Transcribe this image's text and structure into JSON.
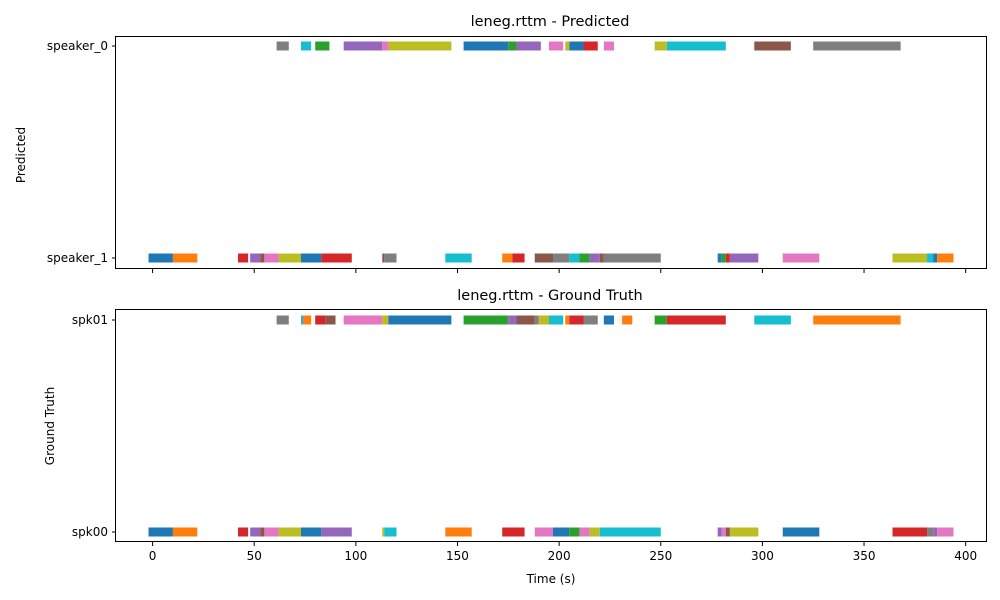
{
  "chart_data": [
    {
      "type": "broken_barh",
      "title": "leneg.rttm - Predicted",
      "ylabel": "Predicted",
      "xlabel": "",
      "xlim": [
        -18,
        410
      ],
      "categories": [
        "speaker_0",
        "speaker_1"
      ],
      "x_ticks": [],
      "segments": [
        {
          "row": "speaker_0",
          "start": 61,
          "end": 67,
          "color": "#7f7f7f"
        },
        {
          "row": "speaker_0",
          "start": 73,
          "end": 78,
          "color": "#17becf"
        },
        {
          "row": "speaker_0",
          "start": 80,
          "end": 87,
          "color": "#2ca02c"
        },
        {
          "row": "speaker_0",
          "start": 94,
          "end": 113,
          "color": "#9467bd"
        },
        {
          "row": "speaker_0",
          "start": 113,
          "end": 116,
          "color": "#e377c2"
        },
        {
          "row": "speaker_0",
          "start": 116,
          "end": 147,
          "color": "#bcbd22"
        },
        {
          "row": "speaker_0",
          "start": 153,
          "end": 175,
          "color": "#1f77b4"
        },
        {
          "row": "speaker_0",
          "start": 175,
          "end": 179,
          "color": "#2ca02c"
        },
        {
          "row": "speaker_0",
          "start": 179,
          "end": 191,
          "color": "#9467bd"
        },
        {
          "row": "speaker_0",
          "start": 195,
          "end": 202,
          "color": "#e377c2"
        },
        {
          "row": "speaker_0",
          "start": 203,
          "end": 205,
          "color": "#bcbd22"
        },
        {
          "row": "speaker_0",
          "start": 205,
          "end": 212,
          "color": "#1f77b4"
        },
        {
          "row": "speaker_0",
          "start": 212,
          "end": 219,
          "color": "#d62728"
        },
        {
          "row": "speaker_0",
          "start": 222,
          "end": 227,
          "color": "#e377c2"
        },
        {
          "row": "speaker_0",
          "start": 247,
          "end": 253,
          "color": "#bcbd22"
        },
        {
          "row": "speaker_0",
          "start": 253,
          "end": 282,
          "color": "#17becf"
        },
        {
          "row": "speaker_0",
          "start": 296,
          "end": 314,
          "color": "#8c564b"
        },
        {
          "row": "speaker_0",
          "start": 325,
          "end": 368,
          "color": "#7f7f7f"
        },
        {
          "row": "speaker_1",
          "start": -2,
          "end": 10,
          "color": "#1f77b4"
        },
        {
          "row": "speaker_1",
          "start": 10,
          "end": 22,
          "color": "#ff7f0e"
        },
        {
          "row": "speaker_1",
          "start": 42,
          "end": 47,
          "color": "#d62728"
        },
        {
          "row": "speaker_1",
          "start": 48,
          "end": 53,
          "color": "#9467bd"
        },
        {
          "row": "speaker_1",
          "start": 53,
          "end": 55,
          "color": "#8c564b"
        },
        {
          "row": "speaker_1",
          "start": 55,
          "end": 62,
          "color": "#e377c2"
        },
        {
          "row": "speaker_1",
          "start": 62,
          "end": 73,
          "color": "#bcbd22"
        },
        {
          "row": "speaker_1",
          "start": 73,
          "end": 83,
          "color": "#1f77b4"
        },
        {
          "row": "speaker_1",
          "start": 83,
          "end": 98,
          "color": "#d62728"
        },
        {
          "row": "speaker_1",
          "start": 113,
          "end": 114,
          "color": "#8c564b"
        },
        {
          "row": "speaker_1",
          "start": 114,
          "end": 120,
          "color": "#7f7f7f"
        },
        {
          "row": "speaker_1",
          "start": 144,
          "end": 157,
          "color": "#17becf"
        },
        {
          "row": "speaker_1",
          "start": 172,
          "end": 177,
          "color": "#ff7f0e"
        },
        {
          "row": "speaker_1",
          "start": 177,
          "end": 183,
          "color": "#d62728"
        },
        {
          "row": "speaker_1",
          "start": 188,
          "end": 197,
          "color": "#8c564b"
        },
        {
          "row": "speaker_1",
          "start": 197,
          "end": 205,
          "color": "#7f7f7f"
        },
        {
          "row": "speaker_1",
          "start": 205,
          "end": 210,
          "color": "#17becf"
        },
        {
          "row": "speaker_1",
          "start": 210,
          "end": 215,
          "color": "#2ca02c"
        },
        {
          "row": "speaker_1",
          "start": 215,
          "end": 220,
          "color": "#9467bd"
        },
        {
          "row": "speaker_1",
          "start": 220,
          "end": 222,
          "color": "#8c564b"
        },
        {
          "row": "speaker_1",
          "start": 222,
          "end": 250,
          "color": "#7f7f7f"
        },
        {
          "row": "speaker_1",
          "start": 278,
          "end": 280,
          "color": "#1f77b4"
        },
        {
          "row": "speaker_1",
          "start": 280,
          "end": 282,
          "color": "#2ca02c"
        },
        {
          "row": "speaker_1",
          "start": 282,
          "end": 284,
          "color": "#d62728"
        },
        {
          "row": "speaker_1",
          "start": 284,
          "end": 298,
          "color": "#9467bd"
        },
        {
          "row": "speaker_1",
          "start": 310,
          "end": 328,
          "color": "#e377c2"
        },
        {
          "row": "speaker_1",
          "start": 364,
          "end": 381,
          "color": "#bcbd22"
        },
        {
          "row": "speaker_1",
          "start": 381,
          "end": 384,
          "color": "#17becf"
        },
        {
          "row": "speaker_1",
          "start": 384,
          "end": 386,
          "color": "#1f77b4"
        },
        {
          "row": "speaker_1",
          "start": 386,
          "end": 394,
          "color": "#ff7f0e"
        }
      ]
    },
    {
      "type": "broken_barh",
      "title": "leneg.rttm - Ground Truth",
      "ylabel": "Ground Truth",
      "xlabel": "Time (s)",
      "xlim": [
        -18,
        410
      ],
      "categories": [
        "spk01",
        "spk00"
      ],
      "x_ticks": [
        0,
        50,
        100,
        150,
        200,
        250,
        300,
        350,
        400
      ],
      "segments": [
        {
          "row": "spk01",
          "start": 61,
          "end": 67,
          "color": "#7f7f7f"
        },
        {
          "row": "spk01",
          "start": 73,
          "end": 74,
          "color": "#17becf"
        },
        {
          "row": "spk01",
          "start": 74,
          "end": 78,
          "color": "#ff7f0e"
        },
        {
          "row": "spk01",
          "start": 80,
          "end": 85,
          "color": "#d62728"
        },
        {
          "row": "spk01",
          "start": 85,
          "end": 90,
          "color": "#8c564b"
        },
        {
          "row": "spk01",
          "start": 94,
          "end": 113,
          "color": "#e377c2"
        },
        {
          "row": "spk01",
          "start": 113,
          "end": 116,
          "color": "#bcbd22"
        },
        {
          "row": "spk01",
          "start": 116,
          "end": 147,
          "color": "#1f77b4"
        },
        {
          "row": "spk01",
          "start": 153,
          "end": 175,
          "color": "#2ca02c"
        },
        {
          "row": "spk01",
          "start": 175,
          "end": 179,
          "color": "#9467bd"
        },
        {
          "row": "spk01",
          "start": 179,
          "end": 188,
          "color": "#8c564b"
        },
        {
          "row": "spk01",
          "start": 188,
          "end": 190,
          "color": "#7f7f7f"
        },
        {
          "row": "spk01",
          "start": 190,
          "end": 195,
          "color": "#bcbd22"
        },
        {
          "row": "spk01",
          "start": 195,
          "end": 202,
          "color": "#17becf"
        },
        {
          "row": "spk01",
          "start": 203,
          "end": 205,
          "color": "#ff7f0e"
        },
        {
          "row": "spk01",
          "start": 205,
          "end": 212,
          "color": "#d62728"
        },
        {
          "row": "spk01",
          "start": 212,
          "end": 219,
          "color": "#7f7f7f"
        },
        {
          "row": "spk01",
          "start": 222,
          "end": 227,
          "color": "#1f77b4"
        },
        {
          "row": "spk01",
          "start": 231,
          "end": 236,
          "color": "#ff7f0e"
        },
        {
          "row": "spk01",
          "start": 247,
          "end": 253,
          "color": "#2ca02c"
        },
        {
          "row": "spk01",
          "start": 253,
          "end": 282,
          "color": "#d62728"
        },
        {
          "row": "spk01",
          "start": 296,
          "end": 314,
          "color": "#17becf"
        },
        {
          "row": "spk01",
          "start": 325,
          "end": 368,
          "color": "#ff7f0e"
        },
        {
          "row": "spk00",
          "start": -2,
          "end": 10,
          "color": "#1f77b4"
        },
        {
          "row": "spk00",
          "start": 10,
          "end": 22,
          "color": "#ff7f0e"
        },
        {
          "row": "spk00",
          "start": 42,
          "end": 47,
          "color": "#d62728"
        },
        {
          "row": "spk00",
          "start": 48,
          "end": 53,
          "color": "#9467bd"
        },
        {
          "row": "spk00",
          "start": 53,
          "end": 55,
          "color": "#8c564b"
        },
        {
          "row": "spk00",
          "start": 55,
          "end": 62,
          "color": "#e377c2"
        },
        {
          "row": "spk00",
          "start": 62,
          "end": 73,
          "color": "#bcbd22"
        },
        {
          "row": "spk00",
          "start": 73,
          "end": 83,
          "color": "#1f77b4"
        },
        {
          "row": "spk00",
          "start": 83,
          "end": 98,
          "color": "#9467bd"
        },
        {
          "row": "spk00",
          "start": 113,
          "end": 114,
          "color": "#bcbd22"
        },
        {
          "row": "spk00",
          "start": 114,
          "end": 120,
          "color": "#17becf"
        },
        {
          "row": "spk00",
          "start": 144,
          "end": 157,
          "color": "#ff7f0e"
        },
        {
          "row": "spk00",
          "start": 172,
          "end": 183,
          "color": "#d62728"
        },
        {
          "row": "spk00",
          "start": 188,
          "end": 197,
          "color": "#e377c2"
        },
        {
          "row": "spk00",
          "start": 197,
          "end": 205,
          "color": "#1f77b4"
        },
        {
          "row": "spk00",
          "start": 205,
          "end": 210,
          "color": "#2ca02c"
        },
        {
          "row": "spk00",
          "start": 210,
          "end": 215,
          "color": "#e377c2"
        },
        {
          "row": "spk00",
          "start": 215,
          "end": 220,
          "color": "#bcbd22"
        },
        {
          "row": "spk00",
          "start": 220,
          "end": 250,
          "color": "#17becf"
        },
        {
          "row": "spk00",
          "start": 278,
          "end": 280,
          "color": "#9467bd"
        },
        {
          "row": "spk00",
          "start": 280,
          "end": 282,
          "color": "#e377c2"
        },
        {
          "row": "spk00",
          "start": 282,
          "end": 284,
          "color": "#8c564b"
        },
        {
          "row": "spk00",
          "start": 284,
          "end": 298,
          "color": "#bcbd22"
        },
        {
          "row": "spk00",
          "start": 310,
          "end": 328,
          "color": "#1f77b4"
        },
        {
          "row": "spk00",
          "start": 364,
          "end": 381,
          "color": "#d62728"
        },
        {
          "row": "spk00",
          "start": 381,
          "end": 384,
          "color": "#7f7f7f"
        },
        {
          "row": "spk00",
          "start": 384,
          "end": 386,
          "color": "#9467bd"
        },
        {
          "row": "spk00",
          "start": 386,
          "end": 394,
          "color": "#e377c2"
        }
      ]
    }
  ]
}
